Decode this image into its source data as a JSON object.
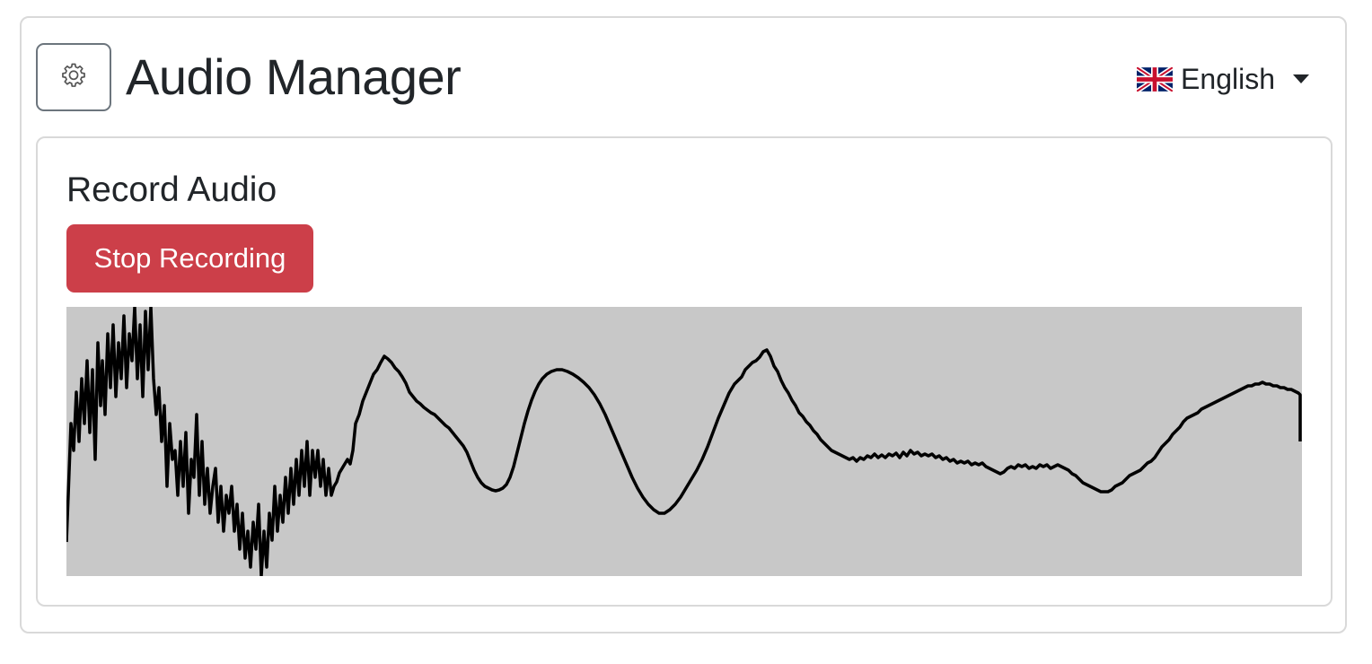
{
  "header": {
    "title": "Audio Manager",
    "settings_icon": "gear-icon",
    "language": {
      "label": "English",
      "flag_icon": "uk-flag-icon"
    }
  },
  "recorder": {
    "title": "Record Audio",
    "stop_label": "Stop Recording",
    "stop_color": "#cc3f49",
    "waveform_background": "#c8c8c8",
    "waveform_line_color": "#000000"
  }
}
